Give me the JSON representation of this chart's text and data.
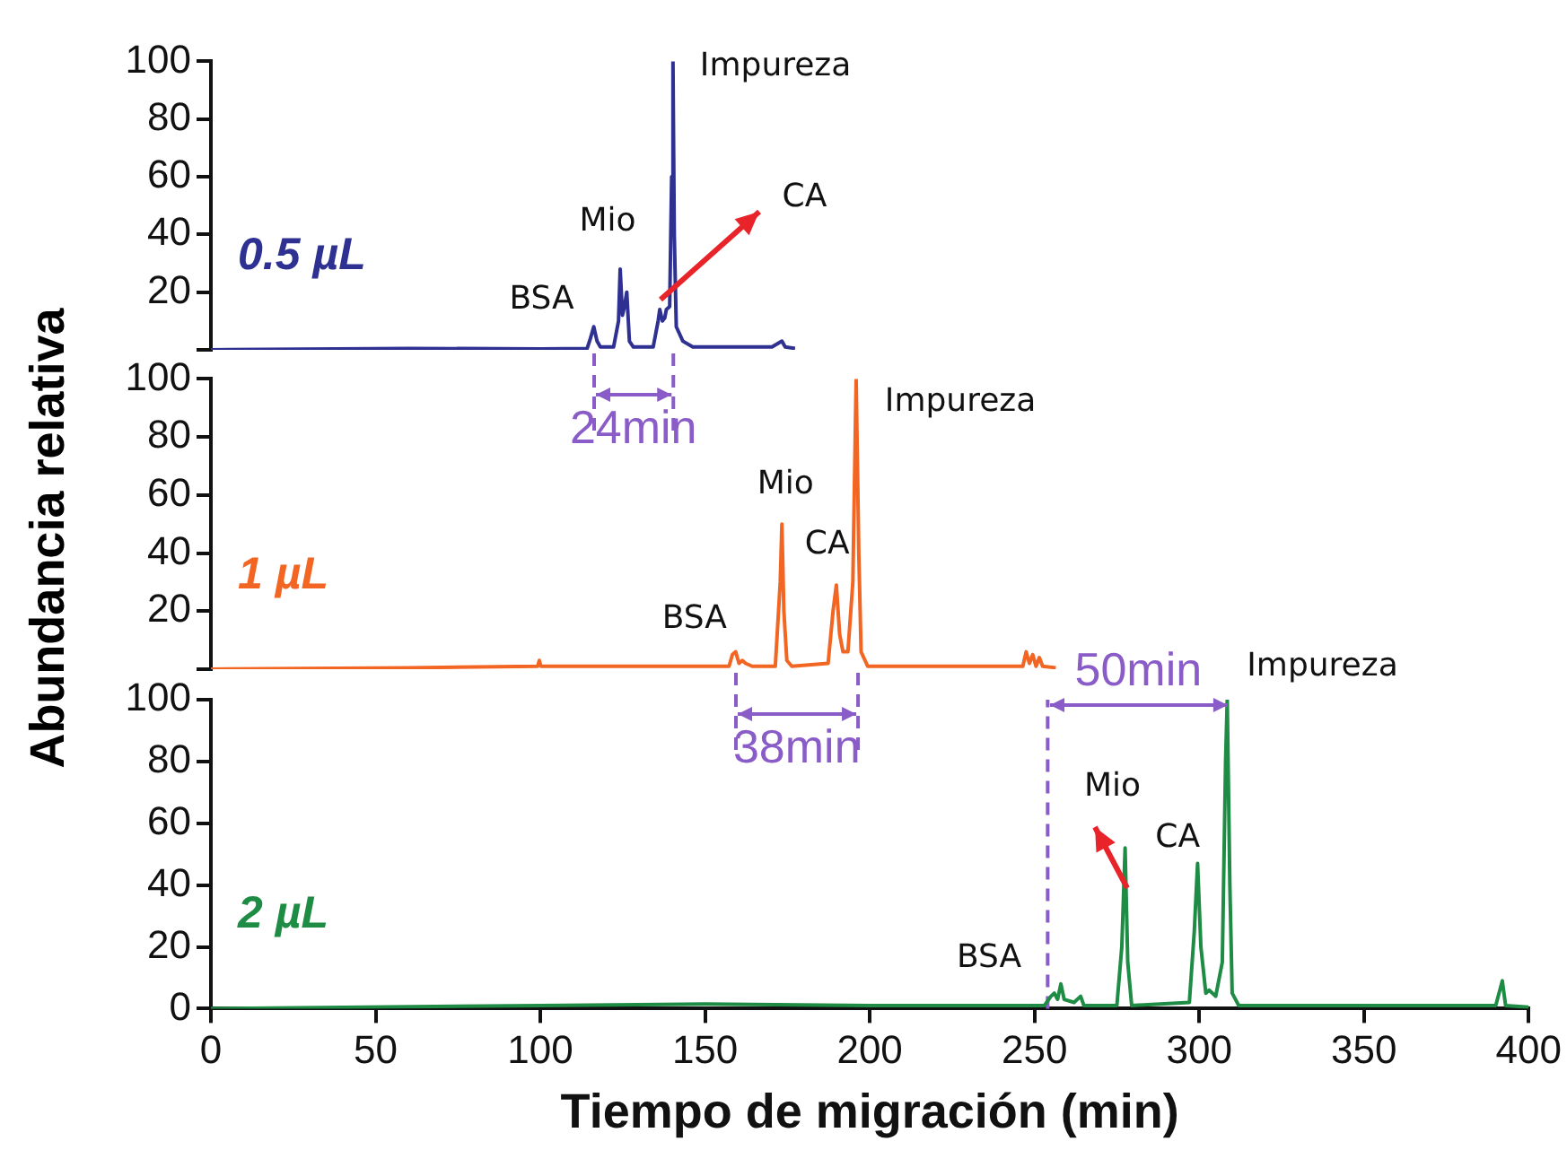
{
  "chart_data": [
    {
      "type": "line",
      "xlim": [
        0,
        400
      ],
      "ylim": [
        0,
        100
      ],
      "yticks": [
        {
          "value": 0,
          "label": null
        },
        20,
        40,
        60,
        80,
        100
      ],
      "tick_labels": "y",
      "marker": "none",
      "line_style": "solid",
      "grid": false,
      "series": [
        {
          "name": "0.5 µL",
          "color": "#2e3192",
          "x": [
            0,
            60,
            100,
            114,
            115,
            116,
            117,
            118,
            122,
            123.5,
            124,
            124.7,
            125.3,
            126,
            126.8,
            128,
            134,
            135.5,
            136,
            136.8,
            137.5,
            138,
            139,
            139.6,
            140,
            140.4,
            141,
            143,
            146,
            170,
            173,
            174,
            177
          ],
          "values": [
            0,
            0.5,
            0.3,
            0.5,
            4,
            8,
            3,
            1,
            1,
            10,
            28,
            12,
            15,
            20,
            3,
            1,
            1,
            10,
            14,
            10,
            11,
            14,
            15,
            60,
            100,
            40,
            8,
            3,
            1,
            1,
            3,
            1,
            0.5
          ]
        }
      ],
      "annotations": [
        {
          "text": "BSA",
          "x": 116,
          "y": 8
        },
        {
          "text": "Mio",
          "x": 124,
          "y": 28
        },
        {
          "text": "CA",
          "x": 138,
          "y": 14
        },
        {
          "text": "Impureza",
          "x": 140,
          "y": 100
        },
        "24min"
      ]
    },
    {
      "type": "line",
      "xlim": [
        0,
        400
      ],
      "ylim": [
        0,
        100
      ],
      "yticks": [
        {
          "value": 0,
          "label": null
        },
        20,
        40,
        60,
        80,
        100
      ],
      "tick_labels": "y",
      "marker": "none",
      "line_style": "solid",
      "grid": false,
      "ylabel": "Abundancia relativa",
      "series": [
        {
          "name": "1 µL",
          "color": "#f26522",
          "x": [
            0,
            60,
            99,
            99.5,
            100,
            140,
            157,
            158,
            159,
            160,
            161,
            162,
            164,
            171,
            172.5,
            173,
            173.6,
            174.5,
            176,
            187,
            188.5,
            189.5,
            190.5,
            191.5,
            193,
            194.5,
            195.5,
            196.3,
            197,
            199,
            246,
            247,
            248,
            249,
            250,
            251,
            252,
            256
          ],
          "values": [
            0,
            0.5,
            1,
            3,
            1,
            1,
            1,
            5,
            6,
            2,
            3,
            2,
            1,
            1,
            30,
            50,
            20,
            3,
            1,
            2,
            20,
            29,
            12,
            6,
            6,
            30,
            100,
            40,
            6,
            1,
            1,
            6,
            2,
            5,
            1,
            4,
            1,
            0.5
          ]
        }
      ],
      "annotations": [
        {
          "text": "BSA",
          "x": 159,
          "y": 6
        },
        {
          "text": "Mio",
          "x": 173,
          "y": 50
        },
        {
          "text": "CA",
          "x": 190,
          "y": 29
        },
        {
          "text": "Impureza",
          "x": 196,
          "y": 100
        },
        "38min"
      ]
    },
    {
      "type": "line",
      "xlim": [
        0,
        400
      ],
      "xticks": [
        0,
        50,
        100,
        150,
        200,
        250,
        300,
        350,
        400
      ],
      "ylim": [
        0,
        100
      ],
      "yticks": [
        0,
        20,
        40,
        60,
        80,
        100
      ],
      "marker": "none",
      "line_style": "solid",
      "grid": false,
      "xlabel": "Tiempo de migración (min)",
      "series": [
        {
          "name": "2 µL",
          "color": "#1e8c45",
          "x": [
            0,
            100,
            150,
            200,
            253,
            255,
            256,
            257,
            258,
            259,
            262,
            264,
            265,
            275,
            276.5,
            277.5,
            278.3,
            279.5,
            297,
            298.5,
            299.5,
            300.5,
            302,
            303,
            305,
            307,
            308,
            308.5,
            309.3,
            310,
            312,
            390,
            392,
            393,
            400
          ],
          "values": [
            0,
            1,
            1.5,
            1,
            1,
            4,
            5,
            3,
            8,
            3,
            2,
            4,
            1,
            1,
            20,
            52,
            15,
            1,
            2,
            25,
            47,
            20,
            5,
            6,
            4,
            15,
            80,
            100,
            40,
            5,
            1,
            1,
            9,
            1,
            0.5
          ]
        }
      ],
      "ref_lines": [
        {
          "axis": "x",
          "value": 254,
          "color": "#8a5cc8",
          "line_style": "dashed"
        }
      ],
      "annotations": [
        {
          "text": "BSA",
          "x": 258,
          "y": 8
        },
        {
          "text": "Mio",
          "x": 278,
          "y": 52
        },
        {
          "text": "CA",
          "x": 300,
          "y": 47
        },
        {
          "text": "Impureza",
          "x": 309,
          "y": 100
        },
        "50min"
      ]
    }
  ]
}
